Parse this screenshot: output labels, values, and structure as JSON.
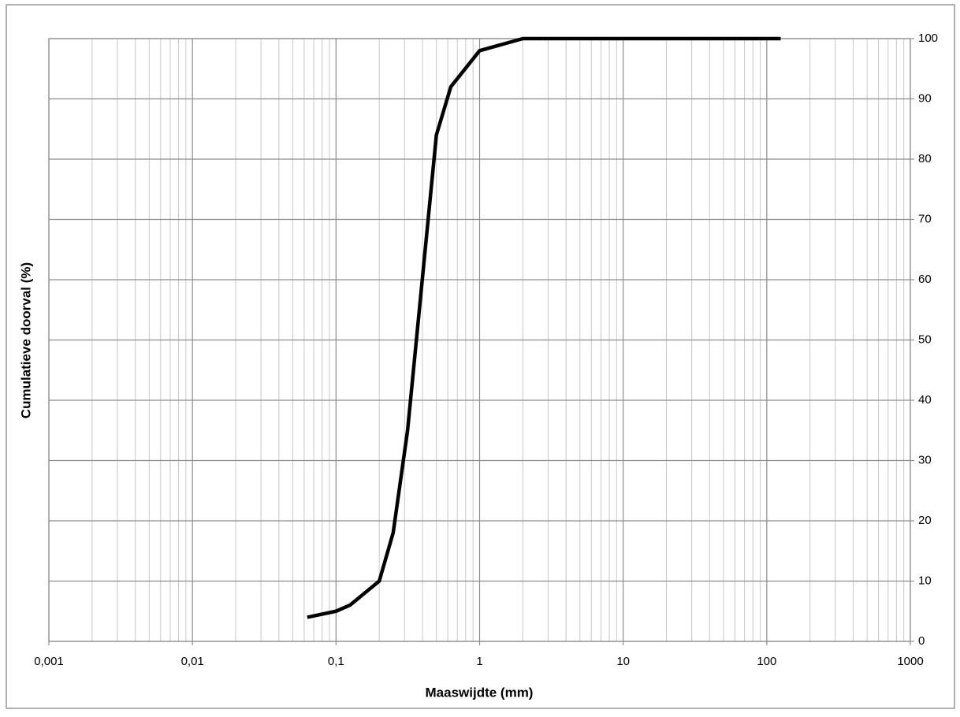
{
  "chart_data": {
    "type": "line",
    "x_label": "Maaswijdte (mm)",
    "y_label": "Cumulatieve doorval (%)",
    "x_log": true,
    "grid": true,
    "minor_grid": true,
    "y_axis_side": "right",
    "series": [
      {
        "color": "#000000",
        "x": [
          0.063,
          0.1,
          0.125,
          0.2,
          0.25,
          0.315,
          0.5,
          0.63,
          1,
          2,
          125
        ],
        "values": [
          4,
          5,
          6,
          10,
          18,
          35,
          84,
          92,
          98,
          100,
          100
        ]
      }
    ],
    "xlim": [
      0.001,
      1000
    ],
    "xticks": [
      {
        "value": 0.001,
        "label": "0,001"
      },
      {
        "value": 0.01,
        "label": "0,01"
      },
      {
        "value": 0.1,
        "label": "0,1"
      },
      1,
      10,
      100,
      1000
    ],
    "ylim": [
      0,
      100
    ],
    "yticks": [
      0,
      10,
      20,
      30,
      40,
      50,
      60,
      70,
      80,
      90,
      100
    ]
  }
}
